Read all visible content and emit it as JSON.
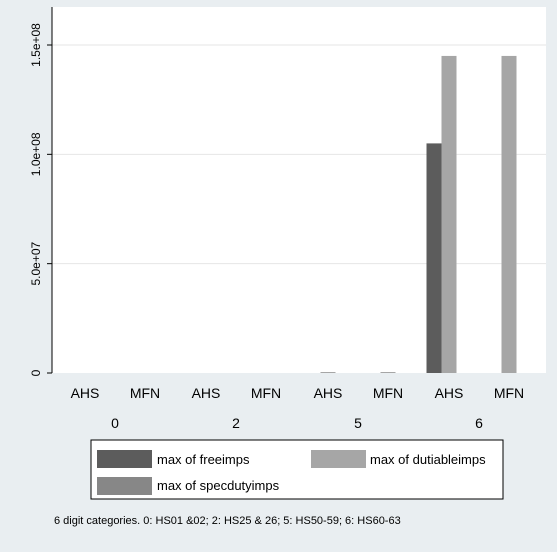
{
  "chart_data": {
    "type": "bar",
    "groups": [
      {
        "label": "0",
        "subs": [
          {
            "label": "AHS",
            "values": [
              0,
              0,
              0
            ]
          },
          {
            "label": "MFN",
            "values": [
              0,
              0,
              0
            ]
          }
        ]
      },
      {
        "label": "2",
        "subs": [
          {
            "label": "AHS",
            "values": [
              0,
              0,
              0
            ]
          },
          {
            "label": "MFN",
            "values": [
              0,
              0,
              0
            ]
          }
        ]
      },
      {
        "label": "5",
        "subs": [
          {
            "label": "AHS",
            "values": [
              0,
              300000,
              0
            ]
          },
          {
            "label": "MFN",
            "values": [
              0,
              300000,
              0
            ]
          }
        ]
      },
      {
        "label": "6",
        "subs": [
          {
            "label": "AHS",
            "values": [
              105000000,
              145000000,
              0
            ]
          },
          {
            "label": "MFN",
            "values": [
              0,
              145000000,
              0
            ]
          }
        ]
      }
    ],
    "series": [
      {
        "name": "max of freeimps",
        "color": "#5c5c5c"
      },
      {
        "name": "max of dutiableimps",
        "color": "#a6a6a6"
      },
      {
        "name": "max of specdutyimps",
        "color": "#878787"
      }
    ],
    "yticks": [
      {
        "value": 0,
        "label": "0"
      },
      {
        "value": 50000000,
        "label": "5.0e+07"
      },
      {
        "value": 100000000,
        "label": "1.0e+08"
      },
      {
        "value": 150000000,
        "label": "1.5e+08"
      }
    ],
    "ylim": [
      0,
      150000000
    ],
    "grid": true,
    "note": "6 digit categories. 0: HS01 &02; 2: HS25 & 26; 5: HS50-59; 6: HS60-63"
  }
}
